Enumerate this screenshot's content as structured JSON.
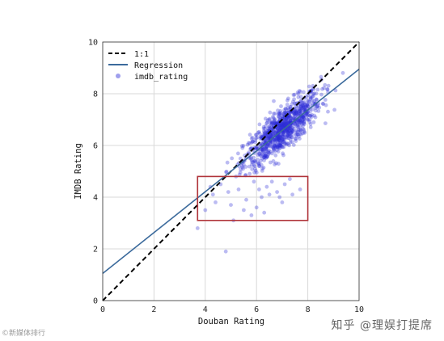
{
  "chart_data": {
    "type": "scatter",
    "xlabel": "Douban Rating",
    "ylabel": "IMDB Rating",
    "xlim": [
      0,
      10
    ],
    "ylim": [
      0,
      10
    ],
    "xticks": [
      "0",
      "2",
      "4",
      "6",
      "8",
      "10"
    ],
    "yticks": [
      "0",
      "2",
      "4",
      "6",
      "8",
      "10"
    ],
    "grid": true,
    "legend_position": "top-left",
    "legend": [
      "1:1",
      "Regression",
      "imdb_rating"
    ],
    "identity_line": {
      "name": "1:1",
      "color": "#000000",
      "style": "dashed"
    },
    "regression": {
      "name": "Regression",
      "slope": 0.79,
      "intercept": 1.05,
      "color": "#3b6a9c"
    },
    "series": [
      {
        "name": "imdb_rating",
        "color": "#2b2bd6",
        "cluster": {
          "x_mean": 7.0,
          "y_mean": 6.6,
          "count": 900
        },
        "outliers": [
          [
            3.7,
            2.8
          ],
          [
            4.8,
            1.9
          ],
          [
            4.3,
            4.1
          ],
          [
            4.4,
            3.8
          ],
          [
            4.6,
            4.5
          ],
          [
            4.9,
            4.2
          ],
          [
            5.0,
            3.7
          ],
          [
            5.3,
            4.3
          ],
          [
            5.5,
            3.5
          ],
          [
            5.6,
            3.9
          ],
          [
            5.8,
            3.3
          ],
          [
            6.0,
            3.6
          ],
          [
            6.1,
            4.3
          ],
          [
            6.3,
            3.4
          ],
          [
            6.5,
            4.1
          ],
          [
            6.6,
            4.6
          ],
          [
            6.8,
            4.2
          ],
          [
            6.9,
            4.0
          ],
          [
            7.1,
            4.5
          ],
          [
            7.3,
            4.7
          ],
          [
            7.7,
            4.3
          ],
          [
            5.2,
            4.8
          ],
          [
            6.4,
            4.4
          ],
          [
            7.4,
            4.1
          ],
          [
            5.1,
            3.1
          ],
          [
            4.2,
            4.4
          ],
          [
            5.9,
            4.6
          ],
          [
            7.0,
            3.8
          ],
          [
            4.0,
            3.5
          ],
          [
            6.2,
            4.0
          ]
        ]
      }
    ],
    "annotation_box": {
      "x_range": [
        3.7,
        8.0
      ],
      "y_range": [
        3.1,
        4.8
      ],
      "color": "#b0343a"
    }
  },
  "watermarks": {
    "left": "©新媒体排行",
    "right": "知乎 @理娱打提席"
  }
}
